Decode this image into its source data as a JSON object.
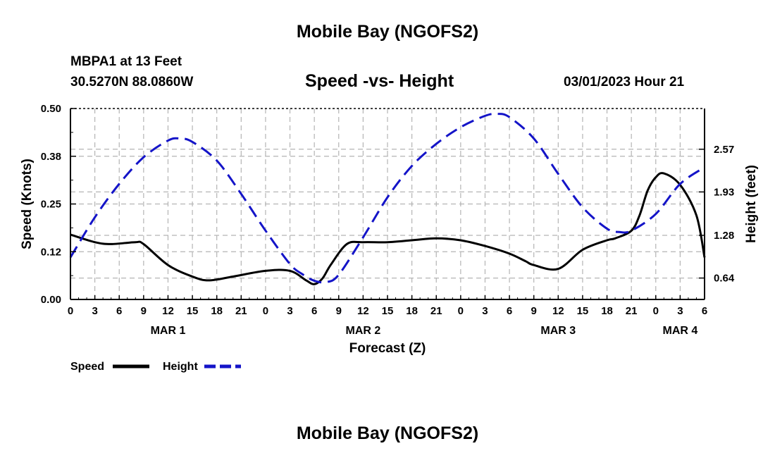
{
  "title": "Mobile Bay (NGOFS2)",
  "bottom_title": "Mobile Bay (NGOFS2)",
  "station": "MBPA1 at 13 Feet",
  "coordinates": "30.5270N  88.0860W",
  "subtitle": "Speed -vs- Height",
  "datetime": "03/01/2023 Hour 21",
  "colors": {
    "speed": "#000000",
    "height": "#1414c8",
    "grid": "#b4b4b4"
  },
  "chart_data": {
    "type": "line",
    "title": "Speed -vs- Height",
    "xlabel": "Forecast (Z)",
    "ylabel": "Speed (Knots)",
    "ylabel_right": "Height (feet)",
    "xlim": [
      0,
      78
    ],
    "ylim": [
      0,
      0.5
    ],
    "ylim_right": [
      0.319,
      3.18
    ],
    "x_ticks": [
      0,
      3,
      6,
      9,
      12,
      15,
      18,
      21,
      24,
      27,
      30,
      33,
      36,
      39,
      42,
      45,
      48,
      51,
      54,
      57,
      60,
      63,
      66,
      69,
      72,
      75,
      78
    ],
    "x_tick_labels": [
      "0",
      "3",
      "6",
      "9",
      "12",
      "15",
      "18",
      "21",
      "0",
      "3",
      "6",
      "9",
      "12",
      "15",
      "18",
      "21",
      "0",
      "3",
      "6",
      "9",
      "12",
      "15",
      "18",
      "21",
      "0",
      "3",
      "6"
    ],
    "date_labels": [
      {
        "x": 12,
        "label": "MAR 1"
      },
      {
        "x": 36,
        "label": "MAR 2"
      },
      {
        "x": 60,
        "label": "MAR 3"
      },
      {
        "x": 75,
        "label": "MAR 4"
      }
    ],
    "y_ticks": [
      0.0,
      0.125,
      0.25,
      0.375,
      0.5
    ],
    "y_tick_labels": [
      "0.00",
      "0.12",
      "0.25",
      "0.38",
      "0.50"
    ],
    "y_ticks_right": [
      0.64,
      1.28,
      1.93,
      2.57
    ],
    "y_tick_labels_right": [
      "0.64",
      "1.28",
      "1.93",
      "2.57"
    ],
    "grid": true,
    "legend": [
      "Speed",
      "Height"
    ],
    "series": [
      {
        "name": "Speed",
        "axis": "left",
        "style": "solid",
        "x": [
          0,
          3,
          5,
          8,
          9,
          12,
          15,
          17,
          20,
          24,
          27,
          29,
          30,
          31,
          32,
          34,
          36,
          39,
          42,
          45,
          48,
          51,
          54,
          56,
          57,
          60,
          63,
          66,
          67,
          69,
          70,
          71,
          72,
          73,
          75,
          77,
          78
        ],
        "values": [
          0.17,
          0.15,
          0.145,
          0.15,
          0.145,
          0.09,
          0.06,
          0.05,
          0.06,
          0.075,
          0.075,
          0.05,
          0.04,
          0.055,
          0.09,
          0.145,
          0.15,
          0.15,
          0.155,
          0.16,
          0.155,
          0.14,
          0.12,
          0.1,
          0.09,
          0.08,
          0.13,
          0.155,
          0.16,
          0.18,
          0.22,
          0.285,
          0.32,
          0.33,
          0.3,
          0.22,
          0.11
        ]
      },
      {
        "name": "Height",
        "axis": "right",
        "style": "dashed",
        "x": [
          0,
          3,
          6,
          9,
          12,
          13.5,
          15,
          18,
          21,
          24,
          27,
          28.5,
          30,
          31.5,
          33,
          36,
          39,
          42,
          45,
          48,
          51,
          52.5,
          54,
          57,
          60,
          63,
          66,
          67.5,
          69,
          72,
          75,
          78
        ],
        "values": [
          0.95,
          1.55,
          2.05,
          2.45,
          2.7,
          2.73,
          2.68,
          2.4,
          1.9,
          1.35,
          0.85,
          0.7,
          0.6,
          0.58,
          0.69,
          1.25,
          1.85,
          2.32,
          2.65,
          2.9,
          3.07,
          3.1,
          3.05,
          2.73,
          2.2,
          1.7,
          1.38,
          1.33,
          1.35,
          1.6,
          2.05,
          2.3
        ]
      }
    ]
  }
}
